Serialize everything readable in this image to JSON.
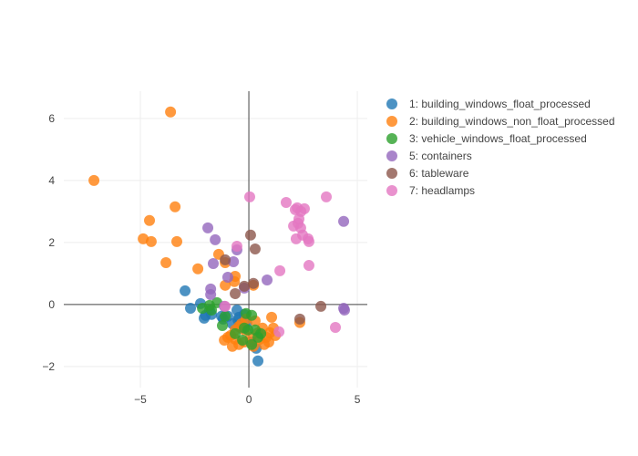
{
  "chart_data": {
    "type": "scatter",
    "title": "",
    "xlabel": "",
    "ylabel": "",
    "xlim": [
      -8.53,
      5.46
    ],
    "ylim": [
      -2.68,
      6.88
    ],
    "xticks": [
      -5,
      0,
      5
    ],
    "xtick_labels": [
      "−5",
      "0",
      "5"
    ],
    "yticks": [
      -2,
      0,
      2,
      4,
      6
    ],
    "ytick_labels": [
      "−2",
      "0",
      "2",
      "4",
      "6"
    ],
    "grid": true,
    "legend_position": "right",
    "series": [
      {
        "name": "1: building_windows_float_processed",
        "color": "#1f77b4",
        "points": [
          [
            -2.94,
            0.44
          ],
          [
            -2.69,
            -0.12
          ],
          [
            -2.06,
            -0.44
          ],
          [
            -2.23,
            0.03
          ],
          [
            -1.81,
            -0.18
          ],
          [
            -0.55,
            -0.18
          ],
          [
            -0.46,
            -0.41
          ],
          [
            -0.76,
            -0.62
          ],
          [
            -1.18,
            -0.47
          ],
          [
            -1.72,
            -0.32
          ],
          [
            -0.21,
            -0.32
          ],
          [
            0.42,
            -1.82
          ],
          [
            0.34,
            -1.41
          ],
          [
            0.08,
            -1.21
          ],
          [
            -0.34,
            -0.76
          ],
          [
            -0.97,
            -0.38
          ],
          [
            -1.26,
            -0.38
          ],
          [
            -2.0,
            -0.35
          ],
          [
            -0.5,
            -0.5
          ],
          [
            -0.1,
            -0.6
          ]
        ]
      },
      {
        "name": "2: building_windows_non_float_processed",
        "color": "#ff7f0e",
        "points": [
          [
            -3.61,
            6.21
          ],
          [
            -7.14,
            4.0
          ],
          [
            -3.4,
            3.15
          ],
          [
            -4.58,
            2.71
          ],
          [
            -4.87,
            2.12
          ],
          [
            -4.5,
            2.03
          ],
          [
            -3.32,
            2.03
          ],
          [
            -3.82,
            1.35
          ],
          [
            -2.35,
            1.15
          ],
          [
            -1.39,
            1.62
          ],
          [
            -1.09,
            1.35
          ],
          [
            -0.63,
            0.91
          ],
          [
            -0.67,
            0.74
          ],
          [
            -1.09,
            0.62
          ],
          [
            0.21,
            0.62
          ],
          [
            2.35,
            -0.58
          ],
          [
            -0.84,
            -1.0
          ],
          [
            -0.63,
            -1.12
          ],
          [
            -0.46,
            -1.29
          ],
          [
            -0.76,
            -1.35
          ],
          [
            -0.21,
            -1.21
          ],
          [
            0.08,
            -1.06
          ],
          [
            0.5,
            -1.12
          ],
          [
            0.8,
            -1.06
          ],
          [
            0.92,
            -1.21
          ],
          [
            1.13,
            -0.76
          ],
          [
            0.97,
            -0.91
          ],
          [
            0.71,
            -1.29
          ],
          [
            0.21,
            -1.35
          ],
          [
            -0.21,
            -0.82
          ],
          [
            -0.46,
            -0.71
          ],
          [
            0.29,
            -0.53
          ],
          [
            0.63,
            -0.76
          ],
          [
            1.05,
            -0.41
          ],
          [
            1.22,
            -1.0
          ],
          [
            -0.63,
            -0.82
          ],
          [
            -0.13,
            -0.47
          ],
          [
            -0.97,
            -1.06
          ],
          [
            -1.13,
            -1.15
          ],
          [
            -0.34,
            -0.62
          ],
          [
            0.42,
            -0.91
          ]
        ]
      },
      {
        "name": "3: vehicle_windows_float_processed",
        "color": "#2ca02c",
        "points": [
          [
            -2.14,
            -0.12
          ],
          [
            -1.72,
            -0.18
          ],
          [
            -1.47,
            0.06
          ],
          [
            -1.81,
            -0.03
          ],
          [
            -1.22,
            -0.68
          ],
          [
            -0.63,
            -0.94
          ],
          [
            -0.13,
            -0.29
          ],
          [
            0.13,
            -0.35
          ],
          [
            -0.04,
            -0.82
          ],
          [
            0.29,
            -0.82
          ],
          [
            0.55,
            -0.94
          ],
          [
            0.13,
            -1.29
          ],
          [
            -0.29,
            -1.15
          ],
          [
            0.42,
            -1.06
          ],
          [
            -0.21,
            -0.76
          ],
          [
            -1.09,
            -0.38
          ]
        ]
      },
      {
        "name": "5: containers",
        "color": "#9467bd",
        "points": [
          [
            -1.89,
            2.47
          ],
          [
            -1.55,
            2.09
          ],
          [
            -1.64,
            1.32
          ],
          [
            -0.55,
            1.76
          ],
          [
            -0.71,
            1.38
          ],
          [
            -0.97,
            0.88
          ],
          [
            0.84,
            0.79
          ],
          [
            -1.76,
            0.5
          ],
          [
            -1.76,
            0.32
          ],
          [
            -1.13,
            -0.06
          ],
          [
            -0.21,
            0.53
          ],
          [
            4.37,
            2.68
          ],
          [
            4.41,
            -0.18
          ],
          [
            4.37,
            -0.12
          ]
        ]
      },
      {
        "name": "6: tableware",
        "color": "#8c564b",
        "points": [
          [
            0.08,
            2.24
          ],
          [
            0.29,
            1.79
          ],
          [
            -1.09,
            1.44
          ],
          [
            -0.63,
            0.35
          ],
          [
            -0.21,
            0.59
          ],
          [
            0.21,
            0.68
          ],
          [
            3.32,
            -0.06
          ],
          [
            2.35,
            -0.47
          ]
        ]
      },
      {
        "name": "7: headlamps",
        "color": "#e377c2",
        "points": [
          [
            0.04,
            3.47
          ],
          [
            1.72,
            3.29
          ],
          [
            3.57,
            3.47
          ],
          [
            2.14,
            3.06
          ],
          [
            2.23,
            3.12
          ],
          [
            2.56,
            3.09
          ],
          [
            2.06,
            2.53
          ],
          [
            2.27,
            2.62
          ],
          [
            2.39,
            2.47
          ],
          [
            2.18,
            2.12
          ],
          [
            2.48,
            2.24
          ],
          [
            2.73,
            2.12
          ],
          [
            2.77,
            2.03
          ],
          [
            2.31,
            2.76
          ],
          [
            2.4,
            3.0
          ],
          [
            2.77,
            1.26
          ],
          [
            1.43,
            1.09
          ],
          [
            -0.55,
            1.88
          ],
          [
            -1.09,
            -0.06
          ],
          [
            1.39,
            -0.88
          ],
          [
            3.99,
            -0.74
          ]
        ]
      }
    ]
  }
}
